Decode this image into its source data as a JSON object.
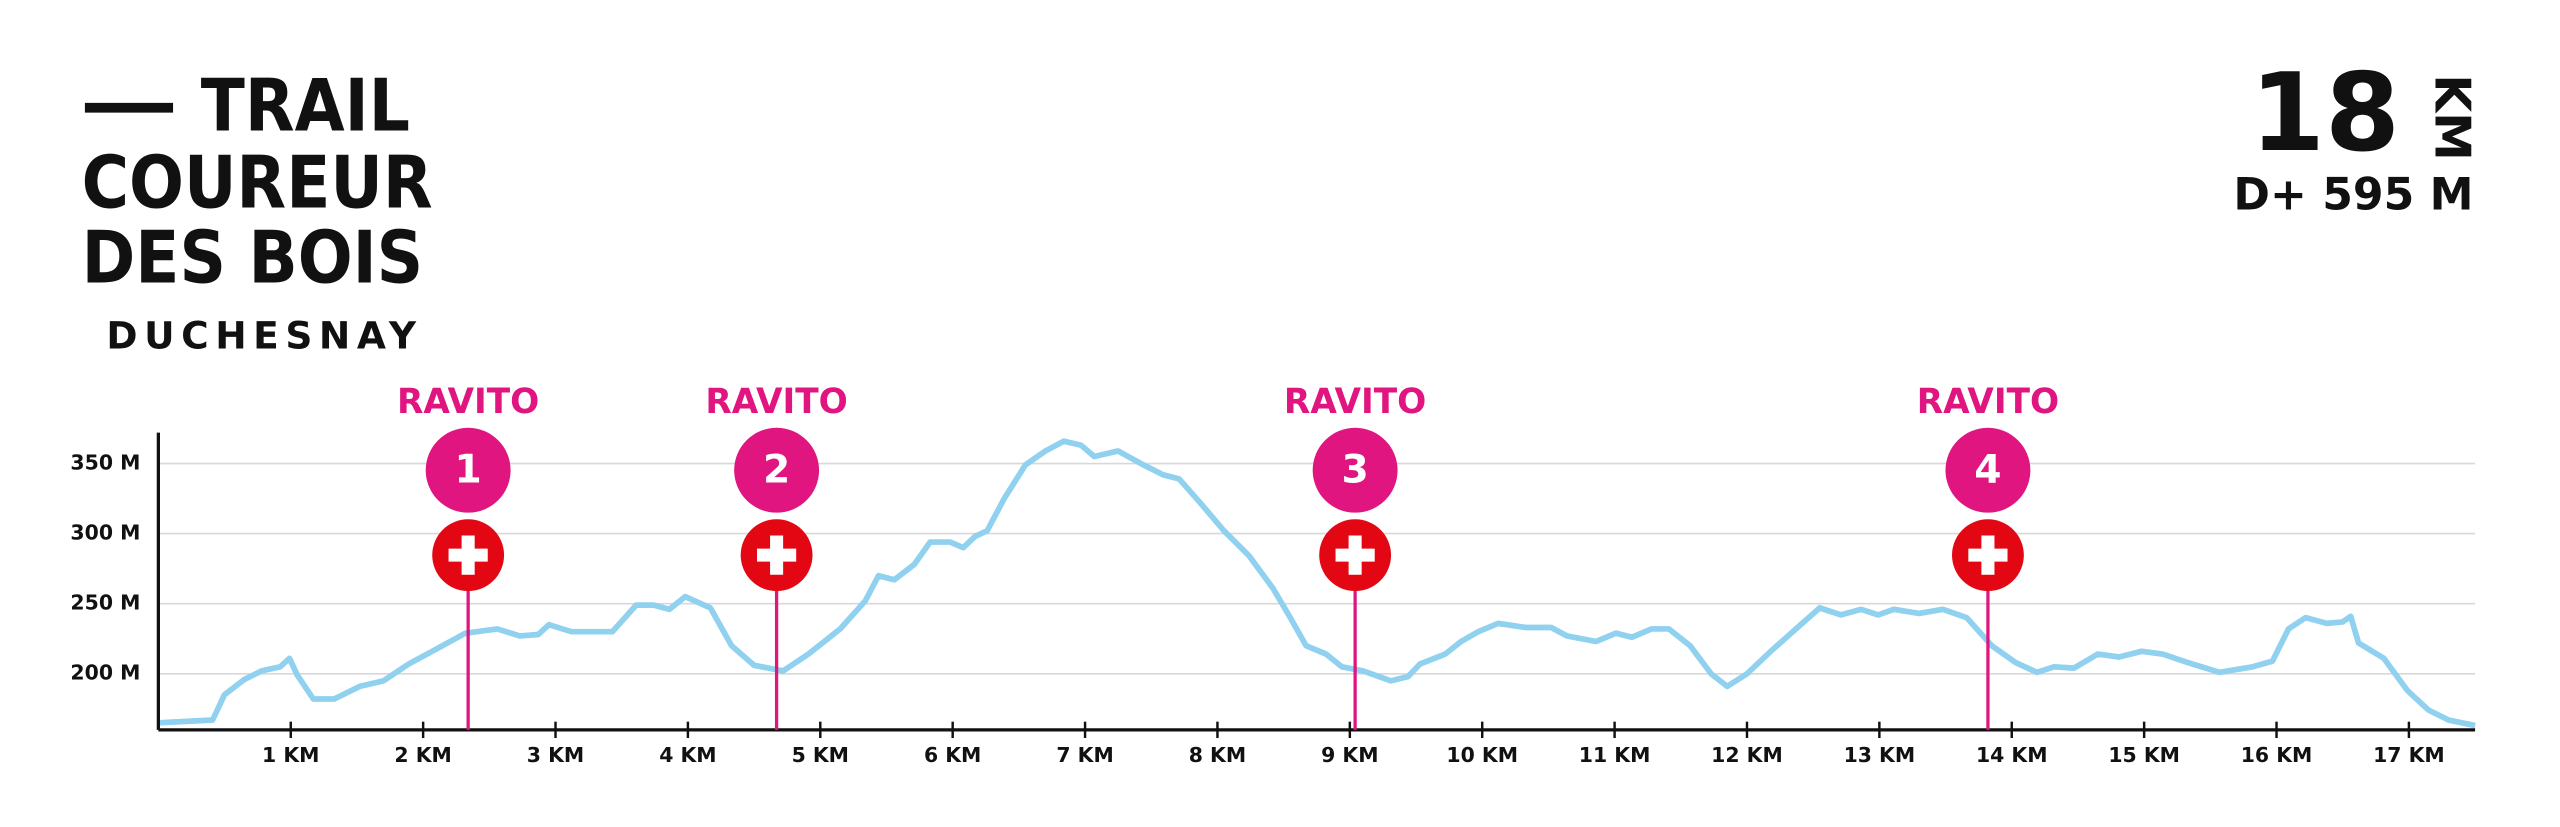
{
  "chart_data": {
    "type": "line",
    "title_lines": [
      "TRAIL",
      "COUREUR",
      "DES BOIS"
    ],
    "subtitle": "DUCHESNAY",
    "distance": "18",
    "distance_unit": "KM",
    "elevation_gain": "D+ 595 M",
    "color": "#8fd1ee",
    "grid": true,
    "xlim": [
      0,
      17.5
    ],
    "ylim": [
      160,
      372
    ],
    "xticks": [
      {
        "value": 1,
        "label": "1 KM"
      },
      {
        "value": 2,
        "label": "2 KM"
      },
      {
        "value": 3,
        "label": "3 KM"
      },
      {
        "value": 4,
        "label": "4 KM"
      },
      {
        "value": 5,
        "label": "5 KM"
      },
      {
        "value": 6,
        "label": "6 KM"
      },
      {
        "value": 7,
        "label": "7 KM"
      },
      {
        "value": 8,
        "label": "8 KM"
      },
      {
        "value": 9,
        "label": "9 KM"
      },
      {
        "value": 10,
        "label": "10 KM"
      },
      {
        "value": 11,
        "label": "11 KM"
      },
      {
        "value": 12,
        "label": "12 KM"
      },
      {
        "value": 13,
        "label": "13 KM"
      },
      {
        "value": 14,
        "label": "14 KM"
      },
      {
        "value": 15,
        "label": "15 KM"
      },
      {
        "value": 16,
        "label": "16 KM"
      },
      {
        "value": 17,
        "label": "17 KM"
      }
    ],
    "yticks": [
      {
        "value": 200,
        "label": "200 M"
      },
      {
        "value": 250,
        "label": "250 M"
      },
      {
        "value": 300,
        "label": "300 M"
      },
      {
        "value": 350,
        "label": "350 M"
      }
    ],
    "x": [
      0,
      0.41,
      0.5,
      0.65,
      0.78,
      0.92,
      0.99,
      1.05,
      1.17,
      1.33,
      1.52,
      1.7,
      1.89,
      2.07,
      2.32,
      2.56,
      2.73,
      2.87,
      2.95,
      3.12,
      3.43,
      3.61,
      3.74,
      3.86,
      3.98,
      4.17,
      4.33,
      4.5,
      4.72,
      4.91,
      5.15,
      5.34,
      5.44,
      5.56,
      5.71,
      5.83,
      5.98,
      6.08,
      6.17,
      6.26,
      6.39,
      6.55,
      6.7,
      6.84,
      6.97,
      7.07,
      7.25,
      7.44,
      7.59,
      7.71,
      7.87,
      8.05,
      8.24,
      8.42,
      8.55,
      8.67,
      8.82,
      8.94,
      9.1,
      9.31,
      9.44,
      9.53,
      9.72,
      9.84,
      9.97,
      10.12,
      10.33,
      10.52,
      10.64,
      10.86,
      11.01,
      11.13,
      11.28,
      11.41,
      11.57,
      11.73,
      11.85,
      12.0,
      12.18,
      12.37,
      12.55,
      12.71,
      12.86,
      12.99,
      13.11,
      13.3,
      13.48,
      13.66,
      13.85,
      14.03,
      14.19,
      14.32,
      14.47,
      14.65,
      14.81,
      14.98,
      15.14,
      15.33,
      15.57,
      15.82,
      15.97,
      16.09,
      16.22,
      16.38,
      16.5,
      16.56,
      16.62,
      16.81,
      16.99,
      17.15,
      17.3,
      17.5
    ],
    "values": [
      165,
      167,
      185,
      196,
      202,
      205,
      211,
      199,
      182,
      182,
      191,
      195,
      207,
      216,
      229,
      232,
      227,
      228,
      235,
      230,
      230,
      249,
      249,
      246,
      255,
      247,
      220,
      206,
      202,
      214,
      232,
      252,
      270,
      267,
      278,
      294,
      294,
      290,
      298,
      302,
      325,
      349,
      359,
      366,
      363,
      355,
      359,
      349,
      342,
      339,
      322,
      302,
      284,
      261,
      240,
      220,
      214,
      205,
      202,
      195,
      198,
      207,
      214,
      223,
      230,
      236,
      233,
      233,
      227,
      223,
      229,
      226,
      232,
      232,
      220,
      200,
      191,
      200,
      216,
      232,
      247,
      242,
      246,
      242,
      246,
      243,
      246,
      240,
      220,
      208,
      201,
      205,
      204,
      214,
      212,
      216,
      214,
      208,
      201,
      205,
      209,
      232,
      240,
      236,
      237,
      241,
      222,
      211,
      188,
      174,
      167,
      163
    ],
    "annotations": [
      {
        "x": 2.34,
        "label": "RAVITO",
        "number": 1
      },
      {
        "x": 4.67,
        "label": "RAVITO",
        "number": 2
      },
      {
        "x": 9.04,
        "label": "RAVITO",
        "number": 3
      },
      {
        "x": 13.82,
        "label": "RAVITO",
        "number": 4
      }
    ]
  }
}
